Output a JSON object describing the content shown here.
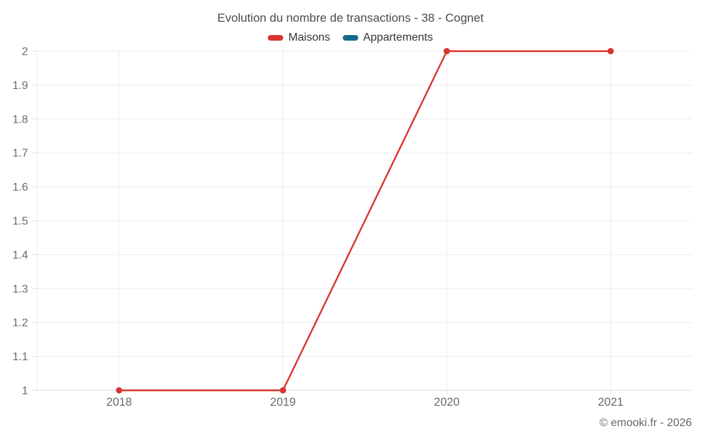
{
  "header": {
    "title": "Evolution du nombre de transactions - 38 - Cognet"
  },
  "legend": {
    "items": [
      {
        "label": "Maisons",
        "color": "#d9342e"
      },
      {
        "label": "Appartements",
        "color": "#17698e"
      }
    ]
  },
  "footer": {
    "credit": "© emooki.fr - 2026"
  },
  "chart_data": {
    "type": "line",
    "title": "Evolution du nombre de transactions - 38 - Cognet",
    "categories": [
      "2018",
      "2019",
      "2020",
      "2021"
    ],
    "series": [
      {
        "name": "Maisons",
        "color": "#d9342e",
        "values": [
          1,
          1,
          2,
          2
        ]
      },
      {
        "name": "Appartements",
        "color": "#17698e",
        "values": []
      }
    ],
    "xlabel": "",
    "ylabel": "",
    "ylim": [
      1,
      2
    ],
    "ytick_step": 0.1,
    "ytick_labels": [
      "1",
      "1.1",
      "1.2",
      "1.3",
      "1.4",
      "1.5",
      "1.6",
      "1.7",
      "1.8",
      "1.9",
      "2"
    ],
    "grid": true,
    "legend_position": "top",
    "marker": "circle",
    "colors": {
      "grid": "#ececec",
      "axis": "#dddddd",
      "tick_label": "#6b6b6b",
      "title": "#4a4a4a"
    }
  }
}
